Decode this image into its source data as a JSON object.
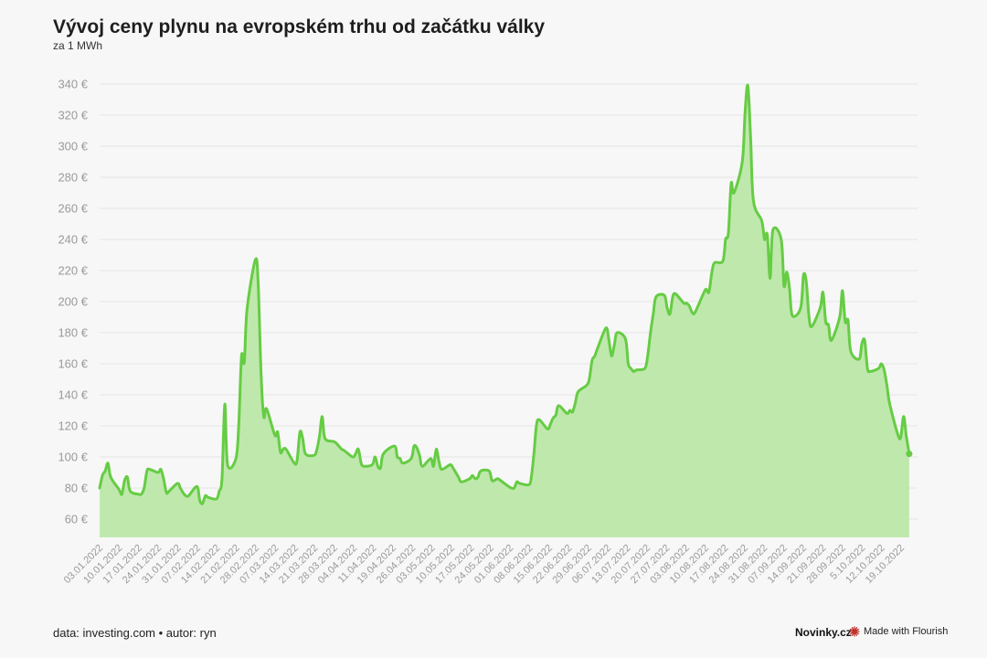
{
  "title": "Vývoj ceny plynu na evropském trhu od začátku války",
  "subtitle": "za 1 MWh",
  "footer": {
    "source": "data: investing.com • autor: ryn",
    "brand": "Novinky.cz",
    "flourish": "Made with Flourish"
  },
  "colors": {
    "line": "#66cc44",
    "area": "#bfe8ad",
    "grid": "#e6e6e6",
    "axis_text": "#9a9a9a",
    "flourish_icon": "#c0312b"
  },
  "chart_data": {
    "type": "area",
    "title": "Vývoj ceny plynu na evropském trhu od začátku války",
    "subtitle": "za 1 MWh",
    "ylim": [
      50,
      345
    ],
    "y_ticks": [
      60,
      80,
      100,
      120,
      140,
      160,
      180,
      200,
      220,
      240,
      260,
      280,
      300,
      320,
      340
    ],
    "y_tick_labels": [
      "60 €",
      "80 €",
      "100 €",
      "120 €",
      "140 €",
      "160 €",
      "180 €",
      "200 €",
      "220 €",
      "240 €",
      "260 €",
      "280 €",
      "300 €",
      "320 €",
      "340 €"
    ],
    "grid": true,
    "x_start": "2022-01-03",
    "x_end": "2022-10-24",
    "x_tick_labels": [
      "03.01.2022",
      "10.01.2022",
      "17.01.2022",
      "24.01.2022",
      "31.01.2022",
      "07.02.2022",
      "14.02.2022",
      "21.02.2022",
      "28.02.2022",
      "07.03.2022",
      "14.03.2022",
      "21.03.2022",
      "28.03.2022",
      "04.04.2022",
      "11.04.2022",
      "19.04.2022",
      "26.04.2022",
      "03.05.2022",
      "10.05.2022",
      "17.05.2022",
      "24.05.2022",
      "01.06.2022",
      "08.06.2022",
      "15.06.2022",
      "22.06.2022",
      "29.06.2022",
      "06.07.2022",
      "13.07.2022",
      "20.07.2022",
      "27.07.2022",
      "03.08.2022",
      "10.08.2022",
      "17.08.2022",
      "24.08.2022",
      "31.08.2022",
      "07.09.2022",
      "14.09.2022",
      "21.09.2022",
      "28.09.2022",
      "5.10.2022",
      "12.10.2022",
      "19.10.2022"
    ],
    "series": [
      {
        "values": [
          [
            "2022-01-03",
            80
          ],
          [
            "2022-01-04",
            88
          ],
          [
            "2022-01-05",
            91
          ],
          [
            "2022-01-06",
            96
          ],
          [
            "2022-01-07",
            87
          ],
          [
            "2022-01-10",
            79
          ],
          [
            "2022-01-11",
            76
          ],
          [
            "2022-01-12",
            85
          ],
          [
            "2022-01-13",
            87
          ],
          [
            "2022-01-14",
            78
          ],
          [
            "2022-01-17",
            76
          ],
          [
            "2022-01-18",
            76
          ],
          [
            "2022-01-19",
            80
          ],
          [
            "2022-01-20",
            91
          ],
          [
            "2022-01-21",
            92
          ],
          [
            "2022-01-24",
            90
          ],
          [
            "2022-01-25",
            92
          ],
          [
            "2022-01-26",
            86
          ],
          [
            "2022-01-27",
            77
          ],
          [
            "2022-01-28",
            78
          ],
          [
            "2022-01-31",
            83
          ],
          [
            "2022-02-01",
            80
          ],
          [
            "2022-02-02",
            77
          ],
          [
            "2022-02-03",
            75
          ],
          [
            "2022-02-04",
            75
          ],
          [
            "2022-02-07",
            81
          ],
          [
            "2022-02-08",
            72
          ],
          [
            "2022-02-09",
            70
          ],
          [
            "2022-02-10",
            75
          ],
          [
            "2022-02-11",
            74
          ],
          [
            "2022-02-14",
            73
          ],
          [
            "2022-02-15",
            78
          ],
          [
            "2022-02-16",
            86
          ],
          [
            "2022-02-17",
            134
          ],
          [
            "2022-02-18",
            95
          ],
          [
            "2022-02-21",
            99
          ],
          [
            "2022-02-22",
            120
          ],
          [
            "2022-02-23",
            165
          ],
          [
            "2022-02-24",
            161
          ],
          [
            "2022-02-25",
            195
          ],
          [
            "2022-02-28",
            227
          ],
          [
            "2022-03-01",
            212
          ],
          [
            "2022-03-02",
            155
          ],
          [
            "2022-03-03",
            126
          ],
          [
            "2022-03-04",
            131
          ],
          [
            "2022-03-07",
            114
          ],
          [
            "2022-03-08",
            116
          ],
          [
            "2022-03-09",
            103
          ],
          [
            "2022-03-10",
            105
          ],
          [
            "2022-03-11",
            105
          ],
          [
            "2022-03-14",
            96
          ],
          [
            "2022-03-15",
            98
          ],
          [
            "2022-03-16",
            116
          ],
          [
            "2022-03-17",
            112
          ],
          [
            "2022-03-18",
            102
          ],
          [
            "2022-03-21",
            101
          ],
          [
            "2022-03-22",
            104
          ],
          [
            "2022-03-23",
            113
          ],
          [
            "2022-03-24",
            126
          ],
          [
            "2022-03-25",
            112
          ],
          [
            "2022-03-28",
            110
          ],
          [
            "2022-03-29",
            109
          ],
          [
            "2022-03-30",
            107
          ],
          [
            "2022-03-31",
            105
          ],
          [
            "2022-04-01",
            104
          ],
          [
            "2022-04-04",
            100
          ],
          [
            "2022-04-05",
            102
          ],
          [
            "2022-04-06",
            105
          ],
          [
            "2022-04-07",
            96
          ],
          [
            "2022-04-08",
            94
          ],
          [
            "2022-04-11",
            95
          ],
          [
            "2022-04-12",
            100
          ],
          [
            "2022-04-13",
            94
          ],
          [
            "2022-04-14",
            93
          ],
          [
            "2022-04-15",
            102
          ],
          [
            "2022-04-19",
            107
          ],
          [
            "2022-04-20",
            100
          ],
          [
            "2022-04-21",
            99
          ],
          [
            "2022-04-22",
            96
          ],
          [
            "2022-04-25",
            99
          ],
          [
            "2022-04-26",
            107
          ],
          [
            "2022-04-27",
            106
          ],
          [
            "2022-04-28",
            101
          ],
          [
            "2022-04-29",
            94
          ],
          [
            "2022-05-02",
            99
          ],
          [
            "2022-05-03",
            94
          ],
          [
            "2022-05-04",
            105
          ],
          [
            "2022-05-05",
            97
          ],
          [
            "2022-05-06",
            92
          ],
          [
            "2022-05-09",
            95
          ],
          [
            "2022-05-10",
            93
          ],
          [
            "2022-05-11",
            90
          ],
          [
            "2022-05-12",
            87
          ],
          [
            "2022-05-13",
            84
          ],
          [
            "2022-05-16",
            86
          ],
          [
            "2022-05-17",
            88
          ],
          [
            "2022-05-18",
            86
          ],
          [
            "2022-05-19",
            87
          ],
          [
            "2022-05-20",
            91
          ],
          [
            "2022-05-23",
            91
          ],
          [
            "2022-05-24",
            85
          ],
          [
            "2022-05-25",
            85
          ],
          [
            "2022-05-26",
            86
          ],
          [
            "2022-05-27",
            85
          ],
          [
            "2022-05-30",
            81
          ],
          [
            "2022-05-31",
            80
          ],
          [
            "2022-06-01",
            80
          ],
          [
            "2022-06-02",
            84
          ],
          [
            "2022-06-03",
            83
          ],
          [
            "2022-06-06",
            82
          ],
          [
            "2022-06-07",
            85
          ],
          [
            "2022-06-08",
            100
          ],
          [
            "2022-06-09",
            120
          ],
          [
            "2022-06-10",
            124
          ],
          [
            "2022-06-13",
            118
          ],
          [
            "2022-06-14",
            121
          ],
          [
            "2022-06-15",
            125
          ],
          [
            "2022-06-16",
            127
          ],
          [
            "2022-06-17",
            133
          ],
          [
            "2022-06-20",
            128
          ],
          [
            "2022-06-21",
            130
          ],
          [
            "2022-06-22",
            129
          ],
          [
            "2022-06-23",
            135
          ],
          [
            "2022-06-24",
            142
          ],
          [
            "2022-06-27",
            146
          ],
          [
            "2022-06-28",
            150
          ],
          [
            "2022-06-29",
            162
          ],
          [
            "2022-06-30",
            165
          ],
          [
            "2022-07-01",
            170
          ],
          [
            "2022-07-04",
            183
          ],
          [
            "2022-07-05",
            176
          ],
          [
            "2022-07-06",
            165
          ],
          [
            "2022-07-07",
            172
          ],
          [
            "2022-07-08",
            180
          ],
          [
            "2022-07-11",
            176
          ],
          [
            "2022-07-12",
            160
          ],
          [
            "2022-07-13",
            157
          ],
          [
            "2022-07-14",
            155
          ],
          [
            "2022-07-15",
            156
          ],
          [
            "2022-07-18",
            157
          ],
          [
            "2022-07-19",
            165
          ],
          [
            "2022-07-20",
            180
          ],
          [
            "2022-07-21",
            192
          ],
          [
            "2022-07-22",
            203
          ],
          [
            "2022-07-25",
            204
          ],
          [
            "2022-07-26",
            196
          ],
          [
            "2022-07-27",
            192
          ],
          [
            "2022-07-28",
            203
          ],
          [
            "2022-07-29",
            205
          ],
          [
            "2022-08-01",
            199
          ],
          [
            "2022-08-02",
            199
          ],
          [
            "2022-08-03",
            197
          ],
          [
            "2022-08-04",
            193
          ],
          [
            "2022-08-05",
            193
          ],
          [
            "2022-08-08",
            205
          ],
          [
            "2022-08-09",
            208
          ],
          [
            "2022-08-10",
            206
          ],
          [
            "2022-08-11",
            218
          ],
          [
            "2022-08-12",
            225
          ],
          [
            "2022-08-15",
            226
          ],
          [
            "2022-08-16",
            240
          ],
          [
            "2022-08-17",
            244
          ],
          [
            "2022-08-18",
            276
          ],
          [
            "2022-08-19",
            270
          ],
          [
            "2022-08-22",
            290
          ],
          [
            "2022-08-23",
            322
          ],
          [
            "2022-08-24",
            339
          ],
          [
            "2022-08-25",
            306
          ],
          [
            "2022-08-26",
            265
          ],
          [
            "2022-08-29",
            252
          ],
          [
            "2022-08-30",
            240
          ],
          [
            "2022-08-31",
            243
          ],
          [
            "2022-09-01",
            215
          ],
          [
            "2022-09-02",
            246
          ],
          [
            "2022-09-05",
            240
          ],
          [
            "2022-09-06",
            210
          ],
          [
            "2022-09-07",
            219
          ],
          [
            "2022-09-08",
            208
          ],
          [
            "2022-09-09",
            191
          ],
          [
            "2022-09-12",
            196
          ],
          [
            "2022-09-13",
            217
          ],
          [
            "2022-09-14",
            213
          ],
          [
            "2022-09-15",
            190
          ],
          [
            "2022-09-16",
            184
          ],
          [
            "2022-09-19",
            196
          ],
          [
            "2022-09-20",
            206
          ],
          [
            "2022-09-21",
            187
          ],
          [
            "2022-09-22",
            185
          ],
          [
            "2022-09-23",
            175
          ],
          [
            "2022-09-26",
            190
          ],
          [
            "2022-09-27",
            207
          ],
          [
            "2022-09-28",
            187
          ],
          [
            "2022-09-29",
            188
          ],
          [
            "2022-09-30",
            168
          ],
          [
            "2022-10-03",
            163
          ],
          [
            "2022-10-04",
            173
          ],
          [
            "2022-10-05",
            175
          ],
          [
            "2022-10-06",
            157
          ],
          [
            "2022-10-07",
            155
          ],
          [
            "2022-10-10",
            157
          ],
          [
            "2022-10-11",
            160
          ],
          [
            "2022-10-12",
            156
          ],
          [
            "2022-10-13",
            146
          ],
          [
            "2022-10-14",
            134
          ],
          [
            "2022-10-17",
            114
          ],
          [
            "2022-10-18",
            113
          ],
          [
            "2022-10-19",
            126
          ],
          [
            "2022-10-20",
            113
          ],
          [
            "2022-10-21",
            102
          ]
        ]
      }
    ]
  }
}
